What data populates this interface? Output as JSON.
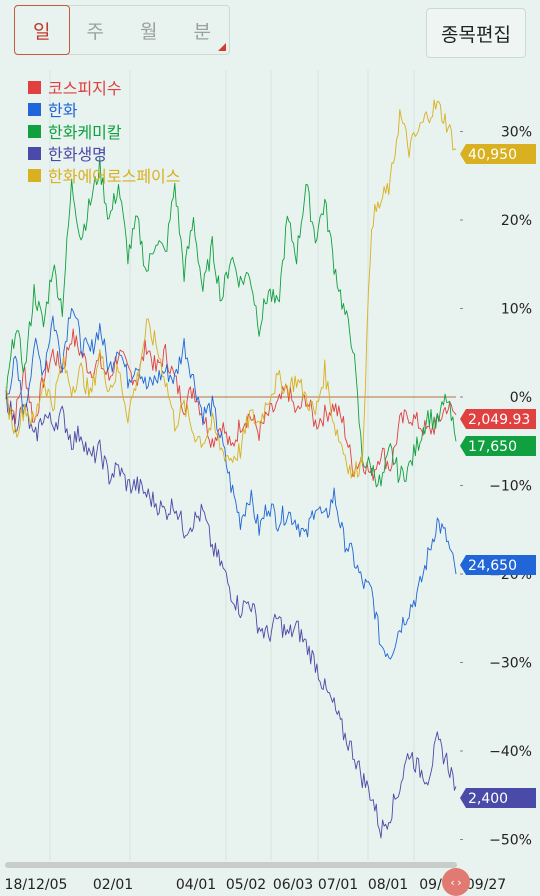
{
  "tabs": [
    {
      "label": "일",
      "active": true
    },
    {
      "label": "주",
      "active": false
    },
    {
      "label": "월",
      "active": false
    },
    {
      "label": "분",
      "active": false
    }
  ],
  "edit_button": "종목편집",
  "chart_data": {
    "type": "line",
    "x_tick_labels": [
      "18/12/05",
      "02/01",
      "04/01",
      "05/02",
      "06/03",
      "07/01",
      "08/01",
      "09/0",
      "09/27"
    ],
    "y_ticks": [
      30,
      20,
      10,
      0,
      -10,
      -20,
      -30,
      -40,
      -50
    ],
    "y_tick_labels": [
      "30%",
      "20%",
      "10%",
      "0%",
      "−10%",
      "−20%",
      "−30%",
      "−40%",
      "−50%"
    ],
    "ylim": [
      -50,
      33
    ],
    "series": [
      {
        "name": "코스피지수",
        "color": "#e04040",
        "end_label": "2,049.93",
        "values": [
          0,
          -2,
          3,
          -3,
          2,
          5,
          3,
          7,
          5,
          3,
          4,
          2,
          5,
          3,
          2,
          6,
          3,
          5,
          2,
          -1,
          1,
          -2,
          -5,
          -3,
          -6,
          -3,
          -2,
          -4,
          -2,
          -1,
          1,
          -2,
          0,
          -3,
          -2,
          -1,
          -3,
          -8,
          -7,
          -9,
          -6,
          -8,
          -3,
          -2,
          -3,
          -4,
          -3,
          -1,
          -2
        ]
      },
      {
        "name": "한화",
        "color": "#2066d8",
        "end_label": "24,650",
        "values": [
          0,
          4,
          -2,
          6,
          3,
          9,
          4,
          11,
          6,
          5,
          8,
          3,
          6,
          2,
          4,
          1,
          2,
          3,
          2,
          6,
          2,
          -2,
          -1,
          -5,
          -10,
          -14,
          -11,
          -15,
          -12,
          -14,
          -13,
          -14,
          -16,
          -12,
          -14,
          -11,
          -16,
          -18,
          -21,
          -22,
          -28,
          -29,
          -26,
          -24,
          -22,
          -18,
          -14,
          -16,
          -20
        ]
      },
      {
        "name": "한화케미칼",
        "color": "#10a040",
        "end_label": "17,650",
        "values": [
          0,
          8,
          3,
          12,
          8,
          15,
          10,
          24,
          18,
          22,
          26,
          20,
          24,
          16,
          20,
          14,
          18,
          16,
          24,
          14,
          20,
          12,
          17,
          11,
          16,
          13,
          14,
          8,
          12,
          10,
          20,
          16,
          24,
          18,
          22,
          15,
          10,
          6,
          -7,
          -8,
          -10,
          -6,
          -9,
          -8,
          -5,
          -2,
          -3,
          0,
          -5
        ]
      },
      {
        "name": "한화생명",
        "color": "#4a4aa8",
        "end_label": "2,400",
        "values": [
          0,
          -3,
          -1,
          -5,
          -2,
          -3,
          -2,
          -5,
          -4,
          -7,
          -6,
          -9,
          -8,
          -10,
          -10,
          -11,
          -12,
          -13,
          -12,
          -15,
          -14,
          -13,
          -17,
          -19,
          -22,
          -24,
          -23,
          -26,
          -27,
          -25,
          -27,
          -26,
          -28,
          -30,
          -33,
          -35,
          -38,
          -40,
          -43,
          -45,
          -49,
          -47,
          -44,
          -40,
          -42,
          -43,
          -39,
          -41,
          -44
        ]
      },
      {
        "name": "한화에어로스페이스",
        "color": "#d8b020",
        "end_label": "40,950",
        "values": [
          0,
          -4,
          -1,
          -3,
          2,
          -1,
          4,
          1,
          3,
          0,
          5,
          1,
          3,
          -2,
          2,
          8,
          6,
          2,
          -3,
          -1,
          -4,
          -5,
          -3,
          -6,
          -7,
          -6,
          -2,
          -3,
          0,
          2,
          1,
          2,
          0,
          -2,
          3,
          -3,
          -6,
          -9,
          -7,
          20,
          22,
          24,
          32,
          28,
          30,
          32,
          33,
          31,
          28
        ]
      }
    ],
    "legend_position": "top-left",
    "grid": true
  }
}
